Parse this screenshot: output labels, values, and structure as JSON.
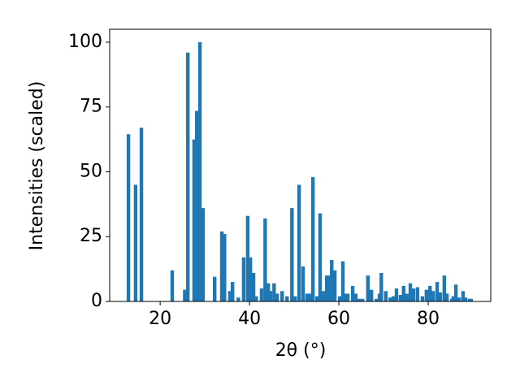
{
  "chart_data": {
    "type": "bar",
    "color": "#1f77b4",
    "x_label": "2θ (°)",
    "y_label": "Intensities (scaled)",
    "x": [
      12.9,
      14.5,
      15.8,
      22.7,
      25.5,
      26.2,
      27.6,
      28.2,
      28.9,
      29.6,
      32.2,
      33.8,
      34.4,
      35.6,
      36.2,
      37.5,
      38.7,
      39.6,
      40.2,
      40.9,
      41.5,
      42.7,
      43.5,
      44.2,
      44.7,
      45.5,
      46.2,
      47.3,
      48.4,
      49.5,
      50.2,
      51.1,
      52.0,
      52.9,
      53.5,
      54.2,
      55.1,
      55.8,
      56.5,
      57.3,
      57.8,
      58.4,
      59.1,
      60.2,
      60.9,
      61.5,
      62.0,
      63.1,
      63.8,
      64.5,
      65.3,
      66.5,
      67.3,
      68.4,
      69.1,
      69.5,
      70.5,
      71.5,
      72.2,
      72.9,
      73.8,
      74.5,
      75.3,
      76.0,
      76.7,
      77.6,
      78.7,
      79.6,
      80.4,
      81.1,
      82.0,
      82.7,
      83.6,
      84.2,
      85.3,
      85.6,
      86.2,
      86.9,
      87.8,
      88.4,
      89.3,
      89.6
    ],
    "values": [
      64.5,
      45,
      67,
      12,
      4.5,
      96,
      62.5,
      73.5,
      100,
      36,
      9.5,
      27,
      26,
      4,
      7.5,
      1.5,
      17,
      33,
      17,
      11,
      2,
      5,
      32,
      7,
      4,
      7,
      3,
      4,
      2,
      36,
      2,
      45,
      13.5,
      3,
      3,
      48,
      2,
      34,
      4,
      10,
      10,
      16,
      12,
      2,
      15.5,
      3,
      3,
      6,
      3,
      1,
      1,
      10,
      4.5,
      1,
      3,
      11,
      4,
      1.5,
      2,
      5,
      2.5,
      6,
      3,
      7,
      5,
      5.5,
      2,
      4.5,
      6,
      4,
      7.5,
      3.5,
      10,
      3,
      1,
      2,
      6.5,
      1.5,
      4,
      1.5,
      1,
      1
    ],
    "xlim": [
      8.7,
      94.0
    ],
    "xticks": [
      20,
      40,
      60,
      80
    ],
    "ylim": [
      0,
      105
    ],
    "yticks": [
      0,
      25,
      50,
      75,
      100
    ],
    "grid": false
  }
}
